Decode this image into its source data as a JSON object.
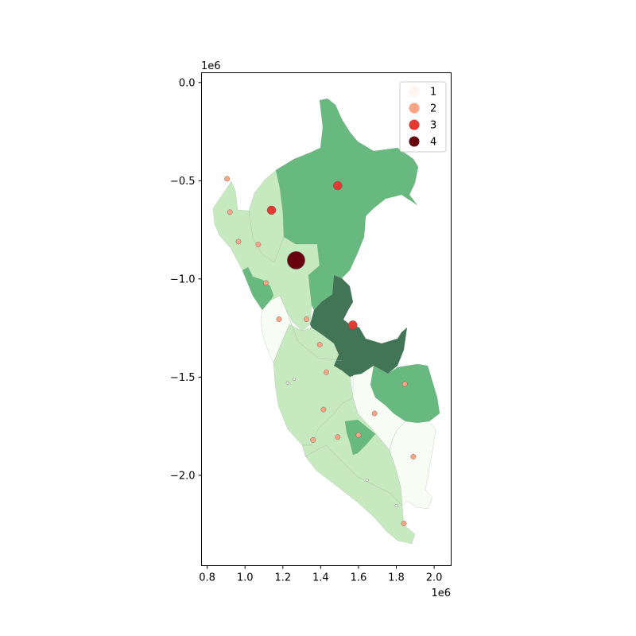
{
  "chart_data": {
    "type": "choropleth-map",
    "title": "",
    "xlabel": "",
    "ylabel": "",
    "x_offset_label": "1e6",
    "y_offset_label": "1e6",
    "xlim": [
      0.77,
      2.09
    ],
    "ylim": [
      -2.46,
      0.05
    ],
    "x_ticks": [
      {
        "value": 0.8,
        "label": "0.8"
      },
      {
        "value": 1.0,
        "label": "1.0"
      },
      {
        "value": 1.2,
        "label": "1.2"
      },
      {
        "value": 1.4,
        "label": "1.4"
      },
      {
        "value": 1.6,
        "label": "1.6"
      },
      {
        "value": 1.8,
        "label": "1.8"
      },
      {
        "value": 2.0,
        "label": "2.0"
      }
    ],
    "y_ticks": [
      {
        "value": 0.0,
        "label": "0.0"
      },
      {
        "value": -0.5,
        "label": "−0.5"
      },
      {
        "value": -1.0,
        "label": "−1.0"
      },
      {
        "value": -1.5,
        "label": "−1.5"
      },
      {
        "value": -2.0,
        "label": "−2.0"
      }
    ],
    "region_fill_colors": {
      "1": "#f7fcf5",
      "2": "#c7e9c0",
      "3": "#68b97f",
      "4": "#427456"
    },
    "legend": {
      "placement": "top-right",
      "entries": [
        {
          "label": "1",
          "color": "#fff5f0"
        },
        {
          "label": "2",
          "color": "#fca486"
        },
        {
          "label": "3",
          "color": "#e53a32"
        },
        {
          "label": "4",
          "color": "#67000d"
        }
      ]
    },
    "points": [
      {
        "x": 1.27,
        "y": -0.905,
        "category": "4"
      },
      {
        "x": 1.49,
        "y": -0.525,
        "category": "3"
      },
      {
        "x": 1.14,
        "y": -0.65,
        "category": "3"
      },
      {
        "x": 1.57,
        "y": -1.235,
        "category": "3"
      },
      {
        "x": 0.905,
        "y": -0.49,
        "category": "2"
      },
      {
        "x": 0.92,
        "y": -0.66,
        "category": "2"
      },
      {
        "x": 0.965,
        "y": -0.81,
        "category": "2"
      },
      {
        "x": 1.07,
        "y": -0.825,
        "category": "2"
      },
      {
        "x": 1.11,
        "y": -1.02,
        "category": "2"
      },
      {
        "x": 1.18,
        "y": -1.205,
        "category": "2"
      },
      {
        "x": 1.325,
        "y": -1.205,
        "category": "2"
      },
      {
        "x": 1.395,
        "y": -1.335,
        "category": "2"
      },
      {
        "x": 1.43,
        "y": -1.475,
        "category": "2"
      },
      {
        "x": 1.415,
        "y": -1.665,
        "category": "2"
      },
      {
        "x": 1.36,
        "y": -1.82,
        "category": "2"
      },
      {
        "x": 1.49,
        "y": -1.805,
        "category": "2"
      },
      {
        "x": 1.6,
        "y": -1.795,
        "category": "2"
      },
      {
        "x": 1.685,
        "y": -1.685,
        "category": "2"
      },
      {
        "x": 1.845,
        "y": -1.535,
        "category": "2"
      },
      {
        "x": 1.89,
        "y": -1.905,
        "category": "2"
      },
      {
        "x": 1.84,
        "y": -2.245,
        "category": "2"
      },
      {
        "x": 1.225,
        "y": -1.53,
        "category": "1"
      },
      {
        "x": 1.26,
        "y": -1.51,
        "category": "1"
      },
      {
        "x": 1.645,
        "y": -2.025,
        "category": "1"
      },
      {
        "x": 1.8,
        "y": -2.155,
        "category": "1"
      }
    ]
  }
}
